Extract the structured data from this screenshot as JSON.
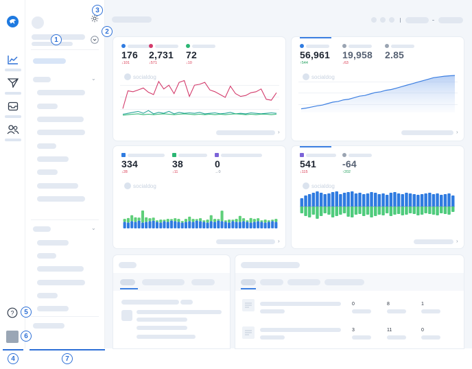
{
  "markers": [
    "1",
    "2",
    "3",
    "4",
    "5",
    "6",
    "7"
  ],
  "icons": {
    "logo": "brand-bird-icon",
    "analytics": "line-chart-icon",
    "send": "paper-plane-icon",
    "inbox": "inbox-icon",
    "users": "users-icon",
    "help": "help-circle-icon",
    "settings": "gear-icon",
    "dropdown": "chevron-down-circle-icon"
  },
  "watermark": "socialdog",
  "colors": {
    "accent": "#3b7ee1",
    "pink": "#d33a6b",
    "green": "#2bb673",
    "gray": "#9aa4b2",
    "blue": "#2f7be0",
    "purple": "#7b63d8",
    "teal": "#2aa59b"
  },
  "card1": {
    "metrics": [
      {
        "value": "176",
        "delta": "↓101",
        "dir": "down"
      },
      {
        "value": "2,731",
        "delta": "↓571",
        "dir": "down"
      },
      {
        "value": "72",
        "delta": "↓10",
        "dir": "down"
      }
    ]
  },
  "card2": {
    "metrics": [
      {
        "value": "56,961",
        "delta": "↑544",
        "dir": "up"
      },
      {
        "value": "19,958",
        "delta": "↓63",
        "dir": "down"
      },
      {
        "value": "2.85",
        "delta": "",
        "dir": "flat"
      }
    ]
  },
  "card3": {
    "metrics": [
      {
        "value": "334",
        "delta": "↓28",
        "dir": "down"
      },
      {
        "value": "38",
        "delta": "↓11",
        "dir": "down"
      },
      {
        "value": "0",
        "delta": "→0",
        "dir": "flat"
      }
    ]
  },
  "card4": {
    "metrics": [
      {
        "value": "541",
        "delta": "↓115",
        "dir": "down"
      },
      {
        "value": "-64",
        "delta": "↑202",
        "dir": "up"
      }
    ]
  },
  "table": {
    "rows": [
      [
        "0",
        "8",
        "1"
      ],
      [
        "3",
        "11",
        "0"
      ]
    ]
  },
  "chart_data": [
    {
      "type": "line",
      "series": [
        {
          "values": [
            20,
            58,
            56,
            60,
            64,
            55,
            50,
            78,
            62,
            70,
            52,
            76,
            80,
            46,
            70,
            72,
            76,
            60,
            56,
            50,
            44,
            68,
            52,
            46,
            48,
            54,
            56,
            62,
            40,
            38,
            54
          ]
        },
        {
          "values": [
            8,
            10,
            12,
            14,
            10,
            16,
            9,
            12,
            10,
            14,
            9,
            12,
            10,
            11,
            10,
            12,
            9,
            10,
            11,
            9,
            10,
            12,
            9,
            10,
            9,
            11,
            10,
            9,
            10,
            11,
            10
          ]
        },
        {
          "values": [
            6,
            7,
            8,
            9,
            7,
            8,
            7,
            8,
            9,
            8,
            7,
            8,
            9,
            8,
            7,
            8,
            7,
            8,
            7,
            8,
            7,
            8,
            9,
            8,
            7,
            8,
            7,
            8,
            8,
            7,
            8
          ]
        }
      ]
    },
    {
      "type": "area",
      "series": [
        {
          "values": [
            10,
            12,
            15,
            18,
            20,
            24,
            28,
            30,
            34,
            36,
            40,
            44,
            46,
            50,
            54,
            56,
            60,
            62,
            66,
            70,
            74,
            78,
            82,
            86,
            90,
            94,
            96,
            98,
            99,
            100
          ]
        }
      ]
    },
    {
      "type": "bar",
      "series": [
        {
          "values": [
            10,
            9,
            11,
            10,
            12,
            9,
            10,
            11,
            12,
            10,
            9,
            11,
            10,
            12,
            11,
            10,
            9,
            10,
            11,
            10,
            12,
            11,
            10,
            9,
            11,
            10,
            12,
            11,
            10,
            9,
            11,
            10,
            10,
            11,
            10,
            9,
            10,
            11,
            10,
            9,
            10,
            11,
            10
          ]
        },
        {
          "values": [
            2,
            3,
            4,
            3,
            2,
            8,
            3,
            2,
            2,
            1,
            2,
            1,
            2,
            1,
            2,
            2,
            1,
            2,
            3,
            2,
            1,
            2,
            1,
            2,
            4,
            2,
            1,
            7,
            1,
            2,
            1,
            2,
            4,
            2,
            1,
            3,
            2,
            2,
            1,
            2,
            1,
            1,
            2
          ]
        }
      ]
    },
    {
      "type": "bar",
      "series": [
        {
          "values": [
            12,
            16,
            18,
            20,
            22,
            20,
            18,
            19,
            21,
            22,
            18,
            20,
            21,
            22,
            19,
            20,
            18,
            19,
            21,
            20,
            18,
            19,
            17,
            20,
            21,
            19,
            18,
            20,
            19,
            18,
            17,
            18,
            19,
            20,
            18,
            19,
            17,
            18,
            19,
            16
          ]
        },
        {
          "values": [
            -10,
            -14,
            -16,
            -12,
            -18,
            -14,
            -10,
            -12,
            -16,
            -14,
            -12,
            -10,
            -15,
            -16,
            -12,
            -11,
            -14,
            -12,
            -16,
            -14,
            -12,
            -13,
            -10,
            -14,
            -12,
            -11,
            -13,
            -12,
            -10,
            -11,
            -13,
            -12,
            -10,
            -11,
            -12,
            -13,
            -10,
            -11,
            -12,
            -8
          ]
        }
      ]
    }
  ]
}
